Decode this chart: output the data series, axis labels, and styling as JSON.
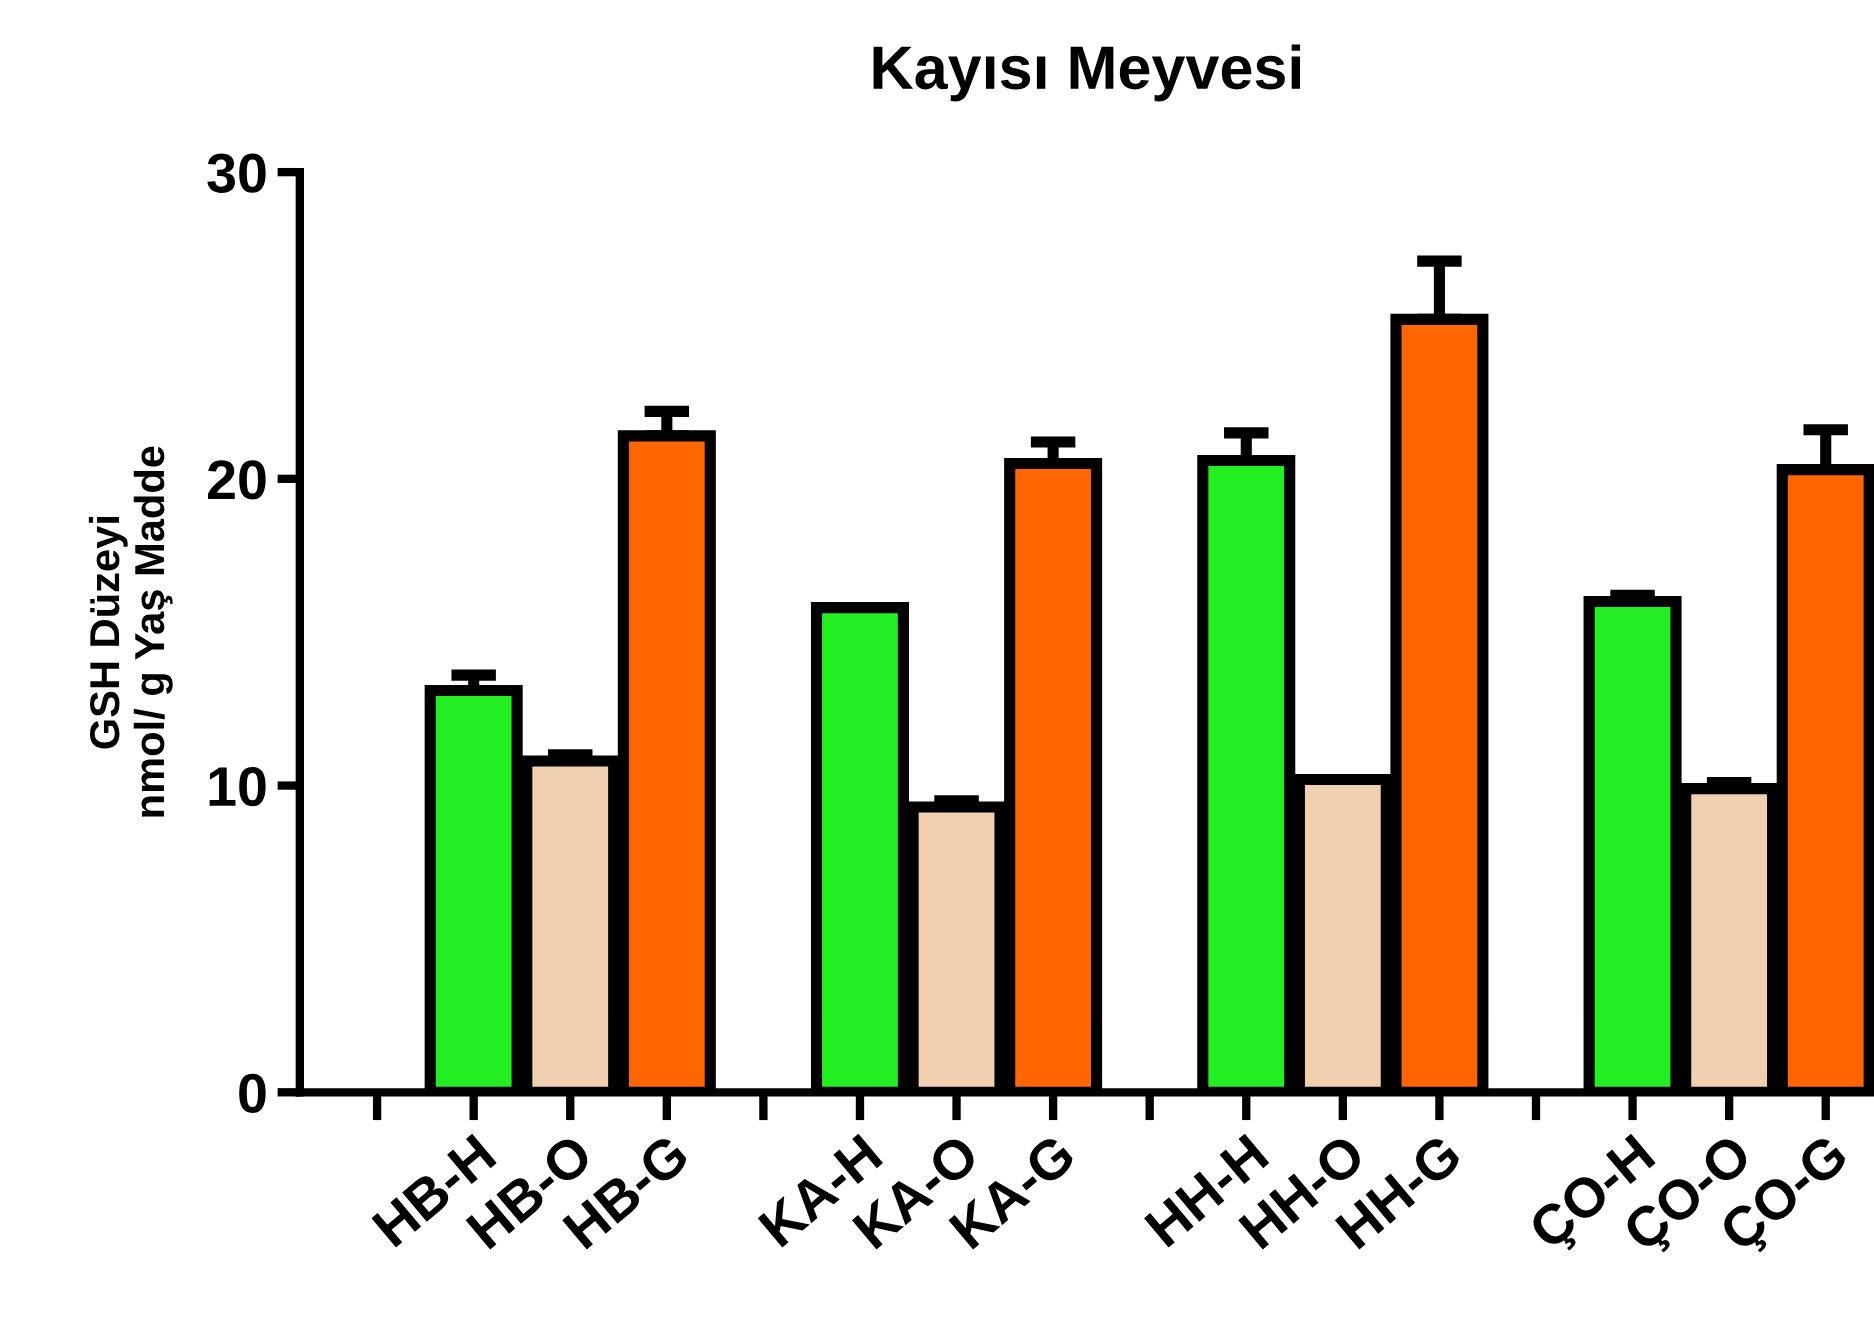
{
  "chart_data": {
    "type": "bar",
    "title": "Kayısı Meyvesi",
    "ylabel": "GSH Düzeyi\nnmol/ g Yaş Madde",
    "categories": [
      null,
      "HB-H",
      "HB-O",
      "HB-G",
      null,
      "KA-H",
      "KA-O",
      "KA-G",
      null,
      "HH-H",
      "HH-O",
      "HH-G",
      null,
      "ÇO-H",
      "ÇO-O",
      "ÇO-G"
    ],
    "values": [
      null,
      13.1,
      10.8,
      21.4,
      null,
      15.8,
      9.3,
      20.5,
      null,
      20.6,
      10.2,
      25.2,
      null,
      16.0,
      9.9,
      20.3
    ],
    "errors": [
      null,
      0.5,
      0.2,
      0.8,
      null,
      null,
      0.2,
      0.7,
      null,
      0.9,
      null,
      1.9,
      null,
      0.2,
      0.2,
      1.3
    ],
    "colors": [
      null,
      "#22ee22",
      "#f0d0b0",
      "#ff6600",
      null,
      "#22ee22",
      "#f0d0b0",
      "#ff6600",
      null,
      "#22ee22",
      "#f0d0b0",
      "#ff6600",
      null,
      "#22ee22",
      "#f0d0b0",
      "#ff6600"
    ],
    "ylim": [
      0,
      30
    ],
    "yticks": [
      0,
      10,
      20,
      30
    ],
    "grid": false,
    "legend": false
  }
}
